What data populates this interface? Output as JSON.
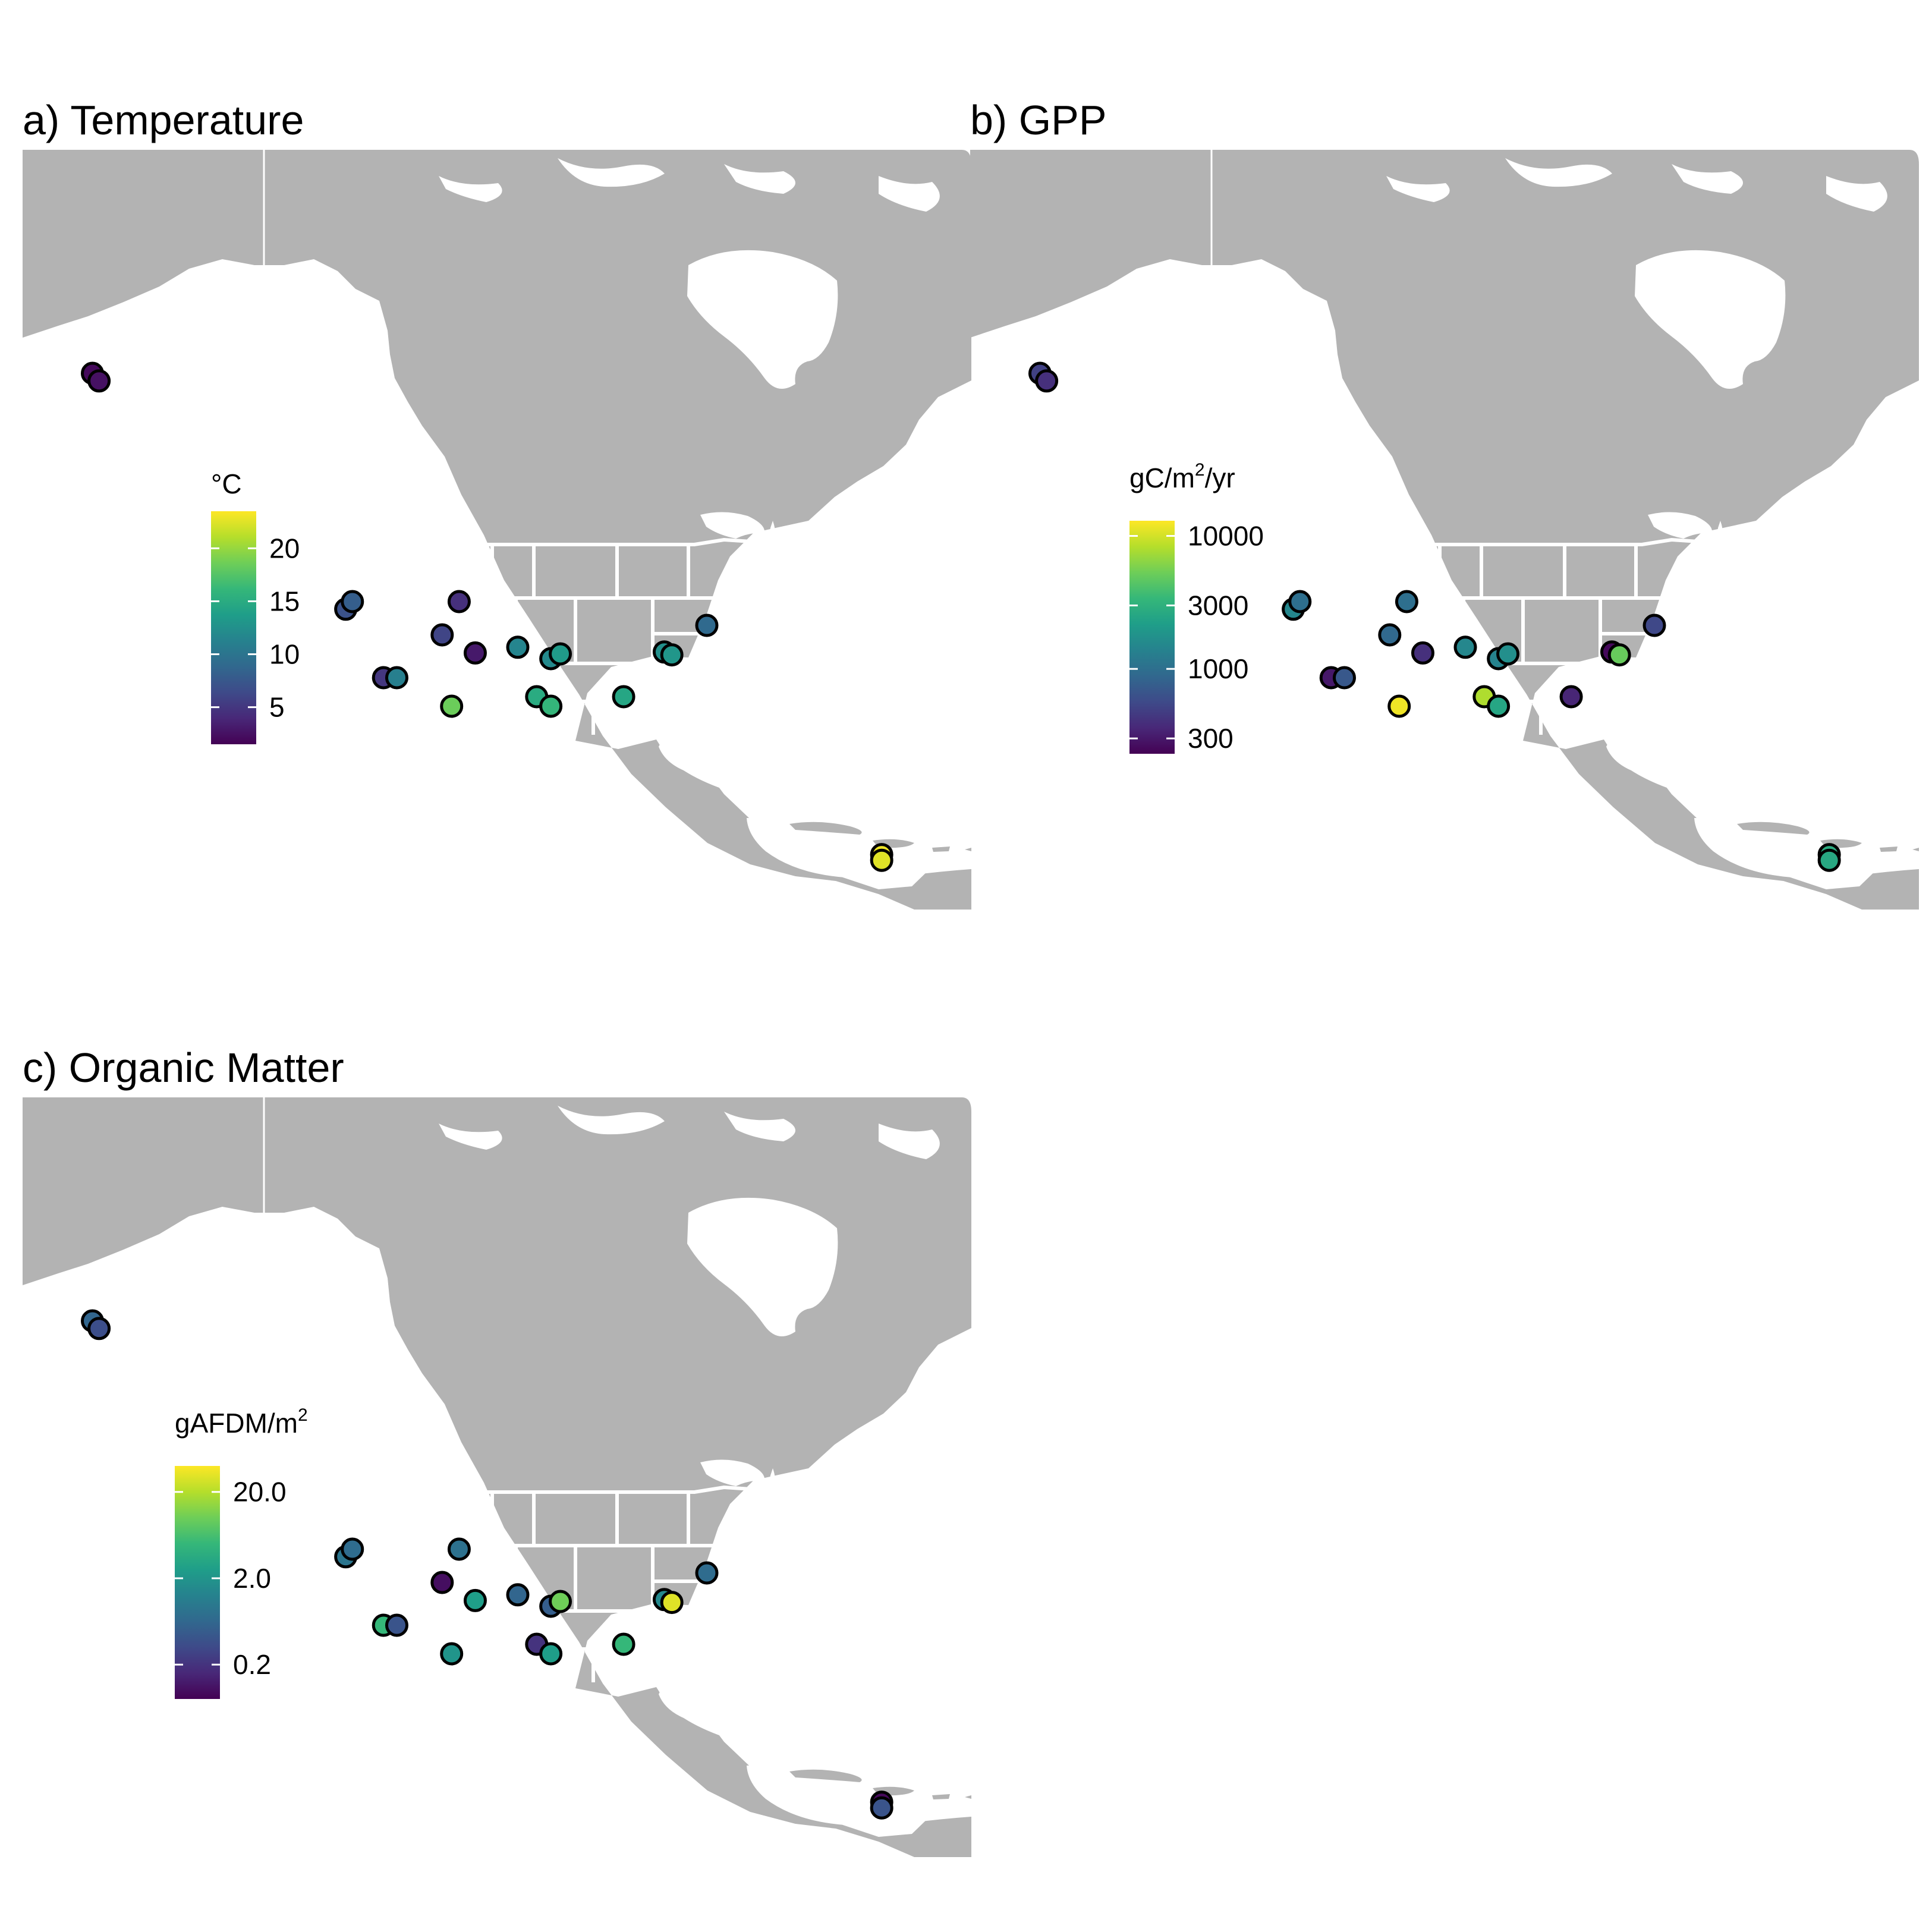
{
  "colors": {
    "land": "#b3b3b3",
    "water": "#ffffff",
    "borders": "#ffffff",
    "marker_outline": "#000000",
    "viridis": [
      "#440154",
      "#482878",
      "#3e4a89",
      "#31688e",
      "#26828e",
      "#1f9e89",
      "#35b779",
      "#6ece58",
      "#b5de2b",
      "#fde725"
    ]
  },
  "chart_data": [
    {
      "type": "map",
      "panel_title": "a) Temperature",
      "legend_title": "°C",
      "scale": "linear",
      "range": [
        1.5,
        23.5
      ],
      "ticks": [
        {
          "value": 5,
          "label": "5"
        },
        {
          "value": 10,
          "label": "10"
        },
        {
          "value": 15,
          "label": "15"
        },
        {
          "value": 20,
          "label": "20"
        }
      ],
      "sites": [
        {
          "lon": -150.0,
          "lat": 69.0,
          "value": 2.0
        },
        {
          "lon": -149.3,
          "lat": 68.2,
          "value": 2.5
        },
        {
          "lon": -123.2,
          "lat": 44.2,
          "value": 7.0
        },
        {
          "lon": -122.5,
          "lat": 45.0,
          "value": 8.0
        },
        {
          "lon": -111.2,
          "lat": 45.0,
          "value": 4.5
        },
        {
          "lon": -113.0,
          "lat": 41.5,
          "value": 6.0
        },
        {
          "lon": -109.5,
          "lat": 39.6,
          "value": 3.0
        },
        {
          "lon": -119.2,
          "lat": 37.0,
          "value": 5.0
        },
        {
          "lon": -117.8,
          "lat": 37.0,
          "value": 11.0
        },
        {
          "lon": -112.0,
          "lat": 34.0,
          "value": 18.5
        },
        {
          "lon": -105.0,
          "lat": 40.2,
          "value": 11.5
        },
        {
          "lon": -101.5,
          "lat": 39.0,
          "value": 12.0
        },
        {
          "lon": -100.5,
          "lat": 39.5,
          "value": 13.5
        },
        {
          "lon": -103.0,
          "lat": 35.0,
          "value": 15.0
        },
        {
          "lon": -101.5,
          "lat": 34.0,
          "value": 16.0
        },
        {
          "lon": -93.8,
          "lat": 35.0,
          "value": 14.5
        },
        {
          "lon": -89.5,
          "lat": 39.7,
          "value": 12.5
        },
        {
          "lon": -88.7,
          "lat": 39.4,
          "value": 13.0
        },
        {
          "lon": -85.0,
          "lat": 42.5,
          "value": 9.0
        },
        {
          "lon": -66.5,
          "lat": 18.4,
          "value": 23.0
        },
        {
          "lon": -66.5,
          "lat": 17.8,
          "value": 22.5
        }
      ]
    },
    {
      "type": "map",
      "panel_title": "b) GPP",
      "legend_title": "gC/m²/yr",
      "legend_title_parts": {
        "base": "gC/m",
        "sup": "2",
        "tail": "/yr"
      },
      "scale": "log10",
      "range": [
        230,
        13000
      ],
      "ticks": [
        {
          "value": 300,
          "label": "300"
        },
        {
          "value": 1000,
          "label": "1000"
        },
        {
          "value": 3000,
          "label": "3000"
        },
        {
          "value": 10000,
          "label": "10000"
        }
      ],
      "sites": [
        {
          "lon": -150.0,
          "lat": 69.0,
          "value": 500
        },
        {
          "lon": -149.3,
          "lat": 68.2,
          "value": 400
        },
        {
          "lon": -123.2,
          "lat": 44.2,
          "value": 1500
        },
        {
          "lon": -122.5,
          "lat": 45.0,
          "value": 1000
        },
        {
          "lon": -111.2,
          "lat": 45.0,
          "value": 1000
        },
        {
          "lon": -113.0,
          "lat": 41.5,
          "value": 900
        },
        {
          "lon": -109.5,
          "lat": 39.6,
          "value": 400
        },
        {
          "lon": -119.2,
          "lat": 37.0,
          "value": 300
        },
        {
          "lon": -117.8,
          "lat": 37.0,
          "value": 700
        },
        {
          "lon": -112.0,
          "lat": 34.0,
          "value": 12000
        },
        {
          "lon": -105.0,
          "lat": 40.2,
          "value": 1500
        },
        {
          "lon": -101.5,
          "lat": 39.0,
          "value": 1400
        },
        {
          "lon": -100.5,
          "lat": 39.5,
          "value": 1700
        },
        {
          "lon": -103.0,
          "lat": 35.0,
          "value": 8000
        },
        {
          "lon": -101.5,
          "lat": 34.0,
          "value": 2500
        },
        {
          "lon": -93.8,
          "lat": 35.0,
          "value": 350
        },
        {
          "lon": -89.5,
          "lat": 39.7,
          "value": 250
        },
        {
          "lon": -88.7,
          "lat": 39.4,
          "value": 5000
        },
        {
          "lon": -85.0,
          "lat": 42.5,
          "value": 550
        },
        {
          "lon": -66.5,
          "lat": 18.4,
          "value": 2800
        },
        {
          "lon": -66.5,
          "lat": 17.8,
          "value": 2600
        }
      ]
    },
    {
      "type": "map",
      "panel_title": "c) Organic Matter",
      "legend_title": "gAFDM/m²",
      "legend_title_parts": {
        "base": "gAFDM/m",
        "sup": "2",
        "tail": ""
      },
      "scale": "log10",
      "range": [
        0.08,
        40
      ],
      "ticks": [
        {
          "value": 0.2,
          "label": "0.2"
        },
        {
          "value": 2,
          "label": "2.0"
        },
        {
          "value": 20,
          "label": "20.0"
        }
      ],
      "sites": [
        {
          "lon": -150.0,
          "lat": 69.0,
          "value": 0.6
        },
        {
          "lon": -149.3,
          "lat": 68.2,
          "value": 0.35
        },
        {
          "lon": -123.2,
          "lat": 44.2,
          "value": 0.9
        },
        {
          "lon": -122.5,
          "lat": 45.0,
          "value": 0.7
        },
        {
          "lon": -111.2,
          "lat": 45.0,
          "value": 0.8
        },
        {
          "lon": -113.0,
          "lat": 41.5,
          "value": 0.1
        },
        {
          "lon": -109.5,
          "lat": 39.6,
          "value": 2.5
        },
        {
          "lon": -119.2,
          "lat": 37.0,
          "value": 5.0
        },
        {
          "lon": -117.8,
          "lat": 37.0,
          "value": 0.4
        },
        {
          "lon": -112.0,
          "lat": 34.0,
          "value": 2.0
        },
        {
          "lon": -105.0,
          "lat": 40.2,
          "value": 0.6
        },
        {
          "lon": -101.5,
          "lat": 39.0,
          "value": 0.5
        },
        {
          "lon": -100.5,
          "lat": 39.5,
          "value": 10.0
        },
        {
          "lon": -103.0,
          "lat": 35.0,
          "value": 0.2
        },
        {
          "lon": -101.5,
          "lat": 34.0,
          "value": 2.5
        },
        {
          "lon": -93.8,
          "lat": 35.0,
          "value": 5.0
        },
        {
          "lon": -89.5,
          "lat": 39.7,
          "value": 1.5
        },
        {
          "lon": -88.7,
          "lat": 39.4,
          "value": 30.0
        },
        {
          "lon": -85.0,
          "lat": 42.5,
          "value": 0.7
        },
        {
          "lon": -66.5,
          "lat": 18.4,
          "value": 0.09
        },
        {
          "lon": -66.5,
          "lat": 17.8,
          "value": 0.4
        }
      ]
    }
  ]
}
